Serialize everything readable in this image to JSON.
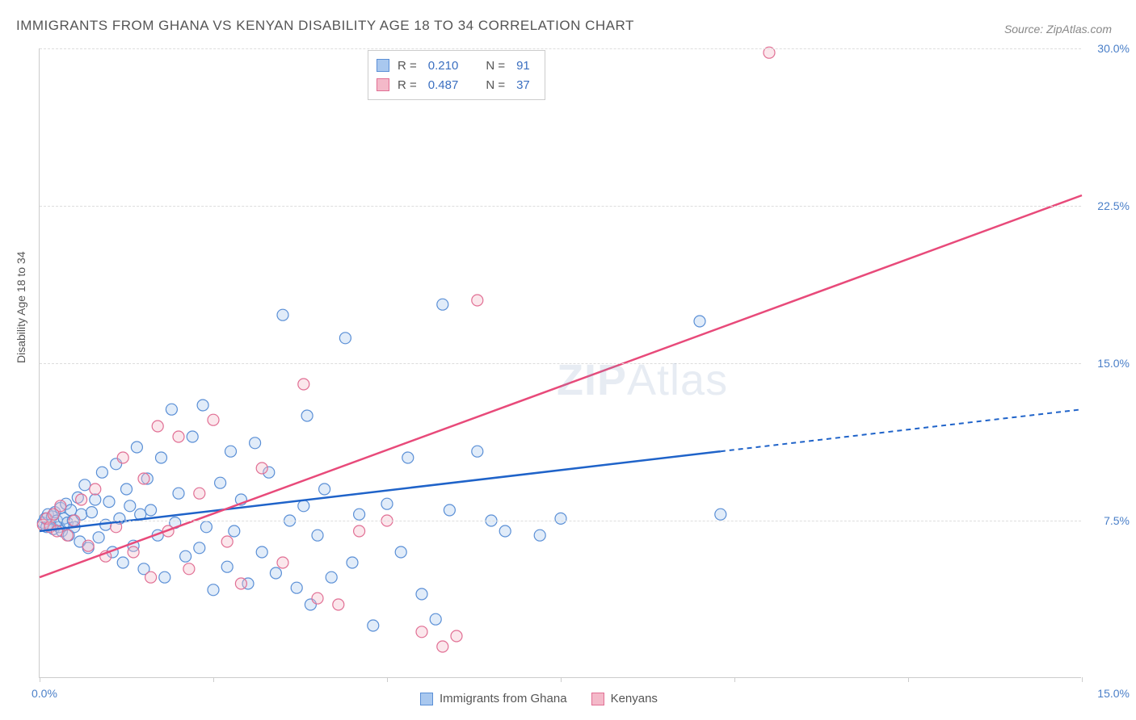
{
  "title": "IMMIGRANTS FROM GHANA VS KENYAN DISABILITY AGE 18 TO 34 CORRELATION CHART",
  "source_label": "Source:",
  "source_value": "ZipAtlas.com",
  "yaxis_title": "Disability Age 18 to 34",
  "watermark": {
    "bold": "ZIP",
    "rest": "Atlas"
  },
  "chart": {
    "type": "scatter",
    "background_color": "#ffffff",
    "grid_color": "#dddddd",
    "axis_color": "#cccccc",
    "marker_radius": 7,
    "xlim": [
      0,
      15
    ],
    "ylim": [
      0,
      30
    ],
    "x_ticks": [
      0,
      2.5,
      5,
      7.5,
      10,
      12.5,
      15
    ],
    "x_tick_labels_shown": {
      "first": "0.0%",
      "last": "15.0%"
    },
    "y_ticks": [
      7.5,
      15.0,
      22.5,
      30.0
    ],
    "y_tick_labels": [
      "7.5%",
      "15.0%",
      "22.5%",
      "30.0%"
    ],
    "series": [
      {
        "id": "ghana",
        "label": "Immigrants from Ghana",
        "fill": "#a9c8ef",
        "stroke": "#5a8fd6",
        "line_color": "#1f63c9",
        "r_value": "0.210",
        "n_value": "91",
        "regression": {
          "x1": 0,
          "y1": 7.0,
          "x2": 9.8,
          "y2": 10.8,
          "dash_x2": 15.0,
          "dash_y2": 12.8
        },
        "points": [
          [
            0.05,
            7.4
          ],
          [
            0.08,
            7.6
          ],
          [
            0.1,
            7.2
          ],
          [
            0.12,
            7.8
          ],
          [
            0.15,
            7.3
          ],
          [
            0.18,
            7.7
          ],
          [
            0.2,
            7.1
          ],
          [
            0.22,
            7.9
          ],
          [
            0.25,
            7.5
          ],
          [
            0.28,
            7.2
          ],
          [
            0.3,
            8.1
          ],
          [
            0.32,
            7.0
          ],
          [
            0.35,
            7.6
          ],
          [
            0.38,
            8.3
          ],
          [
            0.4,
            7.4
          ],
          [
            0.42,
            6.8
          ],
          [
            0.45,
            8.0
          ],
          [
            0.48,
            7.5
          ],
          [
            0.5,
            7.2
          ],
          [
            0.55,
            8.6
          ],
          [
            0.58,
            6.5
          ],
          [
            0.6,
            7.8
          ],
          [
            0.65,
            9.2
          ],
          [
            0.7,
            6.2
          ],
          [
            0.75,
            7.9
          ],
          [
            0.8,
            8.5
          ],
          [
            0.85,
            6.7
          ],
          [
            0.9,
            9.8
          ],
          [
            0.95,
            7.3
          ],
          [
            1.0,
            8.4
          ],
          [
            1.05,
            6.0
          ],
          [
            1.1,
            10.2
          ],
          [
            1.15,
            7.6
          ],
          [
            1.2,
            5.5
          ],
          [
            1.25,
            9.0
          ],
          [
            1.3,
            8.2
          ],
          [
            1.35,
            6.3
          ],
          [
            1.4,
            11.0
          ],
          [
            1.45,
            7.8
          ],
          [
            1.5,
            5.2
          ],
          [
            1.55,
            9.5
          ],
          [
            1.6,
            8.0
          ],
          [
            1.7,
            6.8
          ],
          [
            1.75,
            10.5
          ],
          [
            1.8,
            4.8
          ],
          [
            1.9,
            12.8
          ],
          [
            1.95,
            7.4
          ],
          [
            2.0,
            8.8
          ],
          [
            2.1,
            5.8
          ],
          [
            2.2,
            11.5
          ],
          [
            2.3,
            6.2
          ],
          [
            2.35,
            13.0
          ],
          [
            2.4,
            7.2
          ],
          [
            2.5,
            4.2
          ],
          [
            2.6,
            9.3
          ],
          [
            2.7,
            5.3
          ],
          [
            2.75,
            10.8
          ],
          [
            2.8,
            7.0
          ],
          [
            2.9,
            8.5
          ],
          [
            3.0,
            4.5
          ],
          [
            3.1,
            11.2
          ],
          [
            3.2,
            6.0
          ],
          [
            3.3,
            9.8
          ],
          [
            3.4,
            5.0
          ],
          [
            3.5,
            17.3
          ],
          [
            3.6,
            7.5
          ],
          [
            3.7,
            4.3
          ],
          [
            3.8,
            8.2
          ],
          [
            3.85,
            12.5
          ],
          [
            3.9,
            3.5
          ],
          [
            4.0,
            6.8
          ],
          [
            4.1,
            9.0
          ],
          [
            4.2,
            4.8
          ],
          [
            4.4,
            16.2
          ],
          [
            4.5,
            5.5
          ],
          [
            4.6,
            7.8
          ],
          [
            4.8,
            2.5
          ],
          [
            5.0,
            8.3
          ],
          [
            5.2,
            6.0
          ],
          [
            5.3,
            10.5
          ],
          [
            5.5,
            4.0
          ],
          [
            5.7,
            2.8
          ],
          [
            5.9,
            8.0
          ],
          [
            6.3,
            10.8
          ],
          [
            6.5,
            7.5
          ],
          [
            6.7,
            7.0
          ],
          [
            7.2,
            6.8
          ],
          [
            7.5,
            7.6
          ],
          [
            9.5,
            17.0
          ],
          [
            9.8,
            7.8
          ],
          [
            5.8,
            17.8
          ]
        ]
      },
      {
        "id": "kenya",
        "label": "Kenyans",
        "fill": "#f4b9c9",
        "stroke": "#e16f94",
        "line_color": "#e84a7a",
        "r_value": "0.487",
        "n_value": "37",
        "regression": {
          "x1": 0,
          "y1": 4.8,
          "x2": 15.0,
          "y2": 23.0
        },
        "points": [
          [
            0.05,
            7.3
          ],
          [
            0.1,
            7.6
          ],
          [
            0.15,
            7.2
          ],
          [
            0.2,
            7.8
          ],
          [
            0.25,
            7.0
          ],
          [
            0.3,
            8.2
          ],
          [
            0.4,
            6.8
          ],
          [
            0.5,
            7.5
          ],
          [
            0.6,
            8.5
          ],
          [
            0.7,
            6.3
          ],
          [
            0.8,
            9.0
          ],
          [
            0.95,
            5.8
          ],
          [
            1.1,
            7.2
          ],
          [
            1.2,
            10.5
          ],
          [
            1.35,
            6.0
          ],
          [
            1.5,
            9.5
          ],
          [
            1.6,
            4.8
          ],
          [
            1.7,
            12.0
          ],
          [
            1.85,
            7.0
          ],
          [
            2.0,
            11.5
          ],
          [
            2.15,
            5.2
          ],
          [
            2.3,
            8.8
          ],
          [
            2.5,
            12.3
          ],
          [
            2.7,
            6.5
          ],
          [
            2.9,
            4.5
          ],
          [
            3.2,
            10.0
          ],
          [
            3.5,
            5.5
          ],
          [
            3.8,
            14.0
          ],
          [
            4.0,
            3.8
          ],
          [
            4.3,
            3.5
          ],
          [
            4.6,
            7.0
          ],
          [
            5.0,
            7.5
          ],
          [
            5.5,
            2.2
          ],
          [
            5.8,
            1.5
          ],
          [
            6.0,
            2.0
          ],
          [
            6.3,
            18.0
          ],
          [
            10.5,
            29.8
          ]
        ]
      }
    ]
  },
  "legend_top_labels": {
    "R": "R =",
    "N": "N ="
  }
}
